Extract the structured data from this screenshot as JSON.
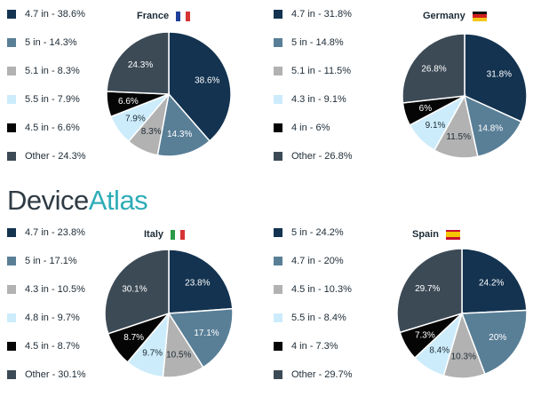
{
  "brand": {
    "word1": "Device",
    "word2": "Atlas"
  },
  "colors": {
    "c0": "#133350",
    "c1": "#597f97",
    "c2": "#b2b2b2",
    "c3": "#cdecfb",
    "c4": "#050505",
    "c5": "#3c4a56"
  },
  "chart_data": [
    {
      "type": "pie",
      "title": "France",
      "flag": "france",
      "legend": [
        "4.7 in - 38.6%",
        "5 in - 14.3%",
        "5.1 in - 8.3%",
        "5.5 in - 7.9%",
        "4.5 in - 6.6%",
        "Other - 24.3%"
      ],
      "categories": [
        "4.7 in",
        "5 in",
        "5.1 in",
        "5.5 in",
        "4.5 in",
        "Other"
      ],
      "values": [
        38.6,
        14.3,
        8.3,
        7.9,
        6.6,
        24.3
      ],
      "data_labels": [
        "38.6%",
        "14.3%",
        "8.3%",
        "7.9%",
        "6.6%",
        "24.3%"
      ]
    },
    {
      "type": "pie",
      "title": "Germany",
      "flag": "germany",
      "legend": [
        "4.7 in - 31.8%",
        "5 in - 14.8%",
        "5.1 in - 11.5%",
        "4.3 in - 9.1%",
        "4 in - 6%",
        "Other - 26.8%"
      ],
      "categories": [
        "4.7 in",
        "5 in",
        "5.1 in",
        "4.3 in",
        "4 in",
        "Other"
      ],
      "values": [
        31.8,
        14.8,
        11.5,
        9.1,
        6,
        26.8
      ],
      "data_labels": [
        "31.8%",
        "14.8%",
        "11.5%",
        "9.1%",
        "6%",
        "26.8%"
      ]
    },
    {
      "type": "pie",
      "title": "Italy",
      "flag": "italy",
      "legend": [
        "4.7 in - 23.8%",
        "5 in - 17.1%",
        "4.3 in - 10.5%",
        "4.8 in - 9.7%",
        "4.5 in - 8.7%",
        "Other - 30.1%"
      ],
      "categories": [
        "4.7 in",
        "5 in",
        "4.3 in",
        "4.8 in",
        "4.5 in",
        "Other"
      ],
      "values": [
        23.8,
        17.1,
        10.5,
        9.7,
        8.7,
        30.1
      ],
      "data_labels": [
        "23.8%",
        "17.1%",
        "10.5%",
        "9.7%",
        "8.7%",
        "30.1%"
      ]
    },
    {
      "type": "pie",
      "title": "Spain",
      "flag": "spain",
      "legend": [
        "5 in - 24.2%",
        "4.7 in - 20%",
        "4.5 in - 10.3%",
        "5.5 in - 8.4%",
        "4 in - 7.3%",
        "Other - 29.7%"
      ],
      "categories": [
        "5 in",
        "4.7 in",
        "4.5 in",
        "5.5 in",
        "4 in",
        "Other"
      ],
      "values": [
        24.2,
        20,
        10.3,
        8.4,
        7.3,
        29.7
      ],
      "data_labels": [
        "24.2%",
        "20%",
        "10.3%",
        "8.4%",
        "7.3%",
        "29.7%"
      ]
    }
  ]
}
